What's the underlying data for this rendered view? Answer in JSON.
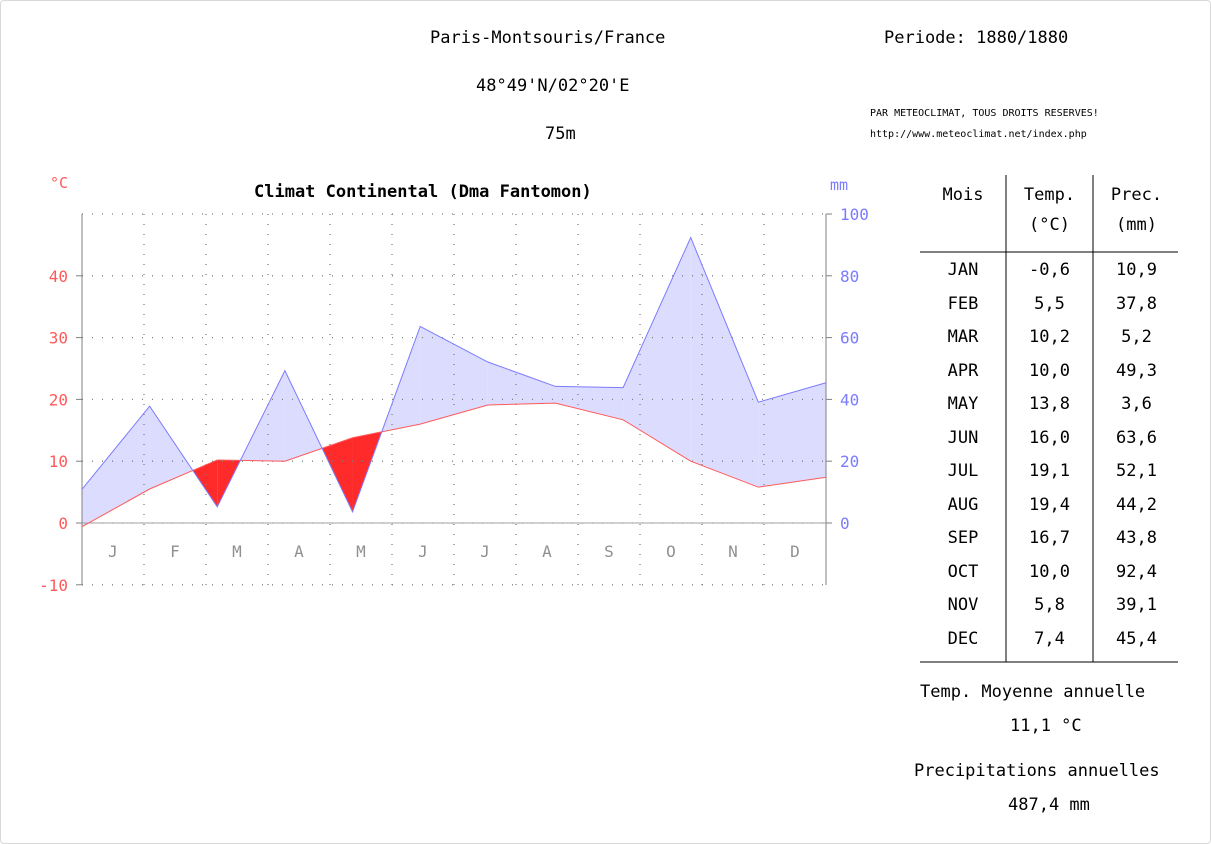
{
  "header": {
    "station": "Paris-Montsouris/France",
    "coords": "48°49'N/02°20'E",
    "altitude": "75m",
    "periode": "Periode: 1880/1880",
    "credit": "PAR METEOCLIMAT, TOUS DROITS RESERVES!",
    "url": "http://www.meteoclimat.net/index.php"
  },
  "table": {
    "col_mois": "Mois",
    "col_temp": "Temp.",
    "col_temp_unit": "(°C)",
    "col_prec": "Prec.",
    "col_prec_unit": "(mm)",
    "rows": [
      {
        "m": "JAN",
        "t": "-0,6",
        "p": "10,9"
      },
      {
        "m": "FEB",
        "t": "5,5",
        "p": "37,8"
      },
      {
        "m": "MAR",
        "t": "10,2",
        "p": "5,2"
      },
      {
        "m": "APR",
        "t": "10,0",
        "p": "49,3"
      },
      {
        "m": "MAY",
        "t": "13,8",
        "p": "3,6"
      },
      {
        "m": "JUN",
        "t": "16,0",
        "p": "63,6"
      },
      {
        "m": "JUL",
        "t": "19,1",
        "p": "52,1"
      },
      {
        "m": "AUG",
        "t": "19,4",
        "p": "44,2"
      },
      {
        "m": "SEP",
        "t": "16,7",
        "p": "43,8"
      },
      {
        "m": "OCT",
        "t": "10,0",
        "p": "92,4"
      },
      {
        "m": "NOV",
        "t": "5,8",
        "p": "39,1"
      },
      {
        "m": "DEC",
        "t": "7,4",
        "p": "45,4"
      }
    ],
    "annual_temp_label": "Temp. Moyenne annuelle",
    "annual_temp_value": "11,1 °C",
    "annual_prec_label": "Precipitations annuelles",
    "annual_prec_value": "487,4 mm"
  },
  "chart_data": {
    "type": "area",
    "title": "Climat Continental (Dma Fantomon)",
    "ylabel": "°C",
    "y2label": "mm",
    "categories": [
      "J",
      "F",
      "M",
      "A",
      "M",
      "J",
      "J",
      "A",
      "S",
      "O",
      "N",
      "D"
    ],
    "ylim": [
      -10,
      50
    ],
    "y2lim": [
      0,
      100
    ],
    "yticks": [
      -10,
      0,
      10,
      20,
      30,
      40
    ],
    "y2ticks": [
      0,
      20,
      40,
      60,
      80,
      100
    ],
    "grid": true,
    "series": [
      {
        "axis": "left",
        "color": "#ff5a5a",
        "values": [
          -0.6,
          5.5,
          10.2,
          10.0,
          13.8,
          16.0,
          19.1,
          19.4,
          16.7,
          10.0,
          5.8,
          7.4
        ]
      },
      {
        "axis": "right",
        "color": "#7b7bff",
        "values": [
          10.9,
          37.8,
          5.2,
          49.3,
          3.6,
          63.6,
          52.1,
          44.2,
          43.8,
          92.4,
          39.1,
          45.4
        ]
      }
    ],
    "colors": {
      "temp": "#ff5a5a",
      "prec": "#7b7bff",
      "humid_fill": "#dcdcff",
      "dry_fill": "#ff2a2a",
      "axis": "#808080"
    }
  }
}
